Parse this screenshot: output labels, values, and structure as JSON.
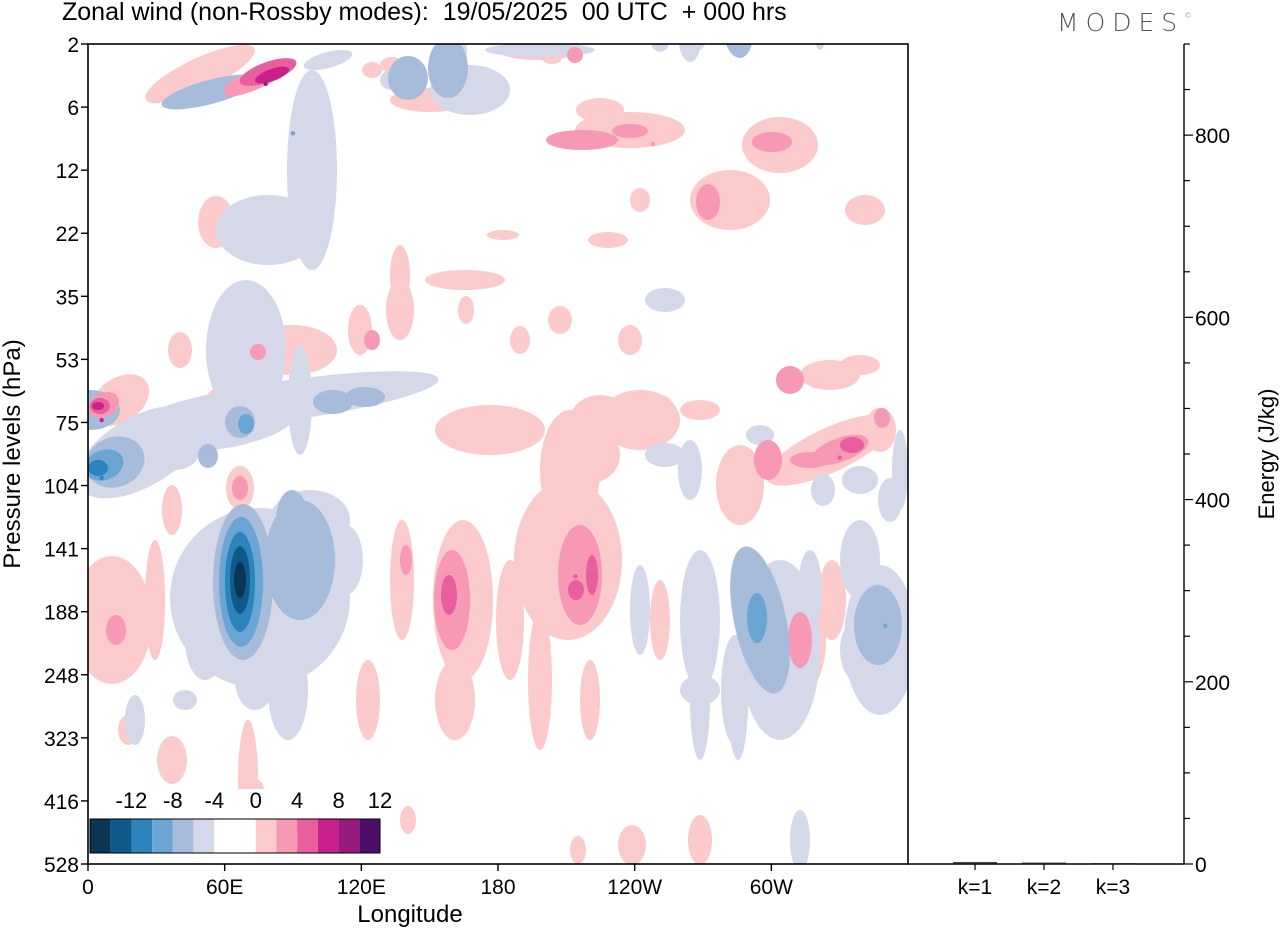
{
  "title": "Zonal wind (non-Rossby modes):  19/05/2025  00 UTC  + 000 hrs",
  "brand": "MODES",
  "brand_mark": "©",
  "colors": {
    "neg": [
      "#0a3553",
      "#0d5a8b",
      "#2c84bd",
      "#6aa5d3",
      "#a6bcda",
      "#d4d8e8"
    ],
    "pos": [
      "#fbcaca",
      "#f799b5",
      "#e85e9e",
      "#c9208c",
      "#981a7c",
      "#4b0e6b"
    ]
  },
  "chart_data": [
    {
      "type": "heatmap",
      "title": "Zonal wind (non-Rossby modes):  19/05/2025  00 UTC  + 000 hrs",
      "xlabel": "Longitude",
      "ylabel": "Pressure levels (hPa)",
      "x_ticks": [
        "0",
        "60E",
        "120E",
        "180",
        "120W",
        "60W"
      ],
      "y_ticks": [
        "2",
        "6",
        "12",
        "22",
        "35",
        "53",
        "75",
        "104",
        "141",
        "188",
        "248",
        "323",
        "416",
        "528"
      ],
      "xlim": [
        0,
        360
      ],
      "colorbar": {
        "labels": [
          "-12",
          "-8",
          "-4",
          "0",
          "4",
          "8",
          "12"
        ],
        "levels": [
          -14,
          -12,
          -10,
          -8,
          -6,
          -4,
          -2,
          0,
          2,
          4,
          6,
          8,
          10,
          12,
          14
        ]
      },
      "features": [
        {
          "lon": 68,
          "level": 164,
          "value": -14
        },
        {
          "lon": 6,
          "level": 100,
          "value": -8
        },
        {
          "lon": 90,
          "level": 8,
          "value": -6
        },
        {
          "lon": 78,
          "level": 4,
          "value": 10
        },
        {
          "lon": 6,
          "level": 74,
          "value": 9
        },
        {
          "lon": 158,
          "level": 170,
          "value": 7
        },
        {
          "lon": 214,
          "level": 160,
          "value": 7
        },
        {
          "lon": 330,
          "level": 90,
          "value": 6
        },
        {
          "lon": 248,
          "level": 9,
          "value": 5
        },
        {
          "lon": 292,
          "level": 210,
          "value": -7
        },
        {
          "lon": 350,
          "level": 200,
          "value": -6
        },
        {
          "lon": 309,
          "level": 215,
          "value": 4
        }
      ]
    },
    {
      "type": "bar",
      "ylabel": "Energy (J/kg)",
      "categories": [
        "k=1",
        "k=2",
        "k=3"
      ],
      "values": [
        2,
        1.5,
        1
      ],
      "ylim": [
        0,
        900
      ],
      "y_ticks": [
        "0",
        "200",
        "400",
        "600",
        "800"
      ]
    }
  ]
}
